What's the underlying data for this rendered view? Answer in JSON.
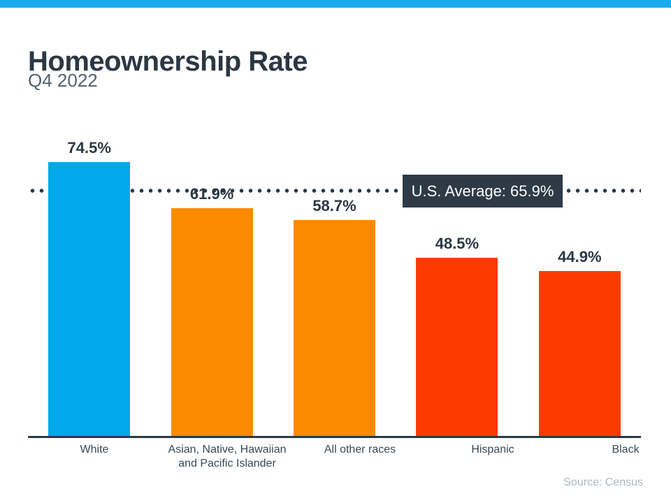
{
  "header": {
    "title": "Homeownership Rate",
    "subtitle": "Q4 2022"
  },
  "average_callout": {
    "label": "U.S. Average: 65.9%"
  },
  "footer": {
    "source": "Source: Census"
  },
  "colors": {
    "top_bar": "#18ABEC",
    "title_text": "#2B3744",
    "subtitle_text": "#54626D",
    "value_text": "#2B3744",
    "category_text": "#3A4854",
    "axis": "#2C3844",
    "dotted_line": "#2C3844",
    "callout_bg": "#2E3A46",
    "callout_text": "#FFFFFF",
    "source_text": "#B1B7BD"
  },
  "chart_data": {
    "type": "bar",
    "title": "Homeownership Rate",
    "subtitle": "Q4 2022",
    "categories": [
      "White",
      "Asian, Native, Hawaiian and Pacific Islander",
      "All other races",
      "Hispanic",
      "Black"
    ],
    "values": [
      74.5,
      61.9,
      58.7,
      48.5,
      44.9
    ],
    "value_labels": [
      "74.5%",
      "61.9%",
      "58.7%",
      "48.5%",
      "44.9%"
    ],
    "bar_colors": [
      "#00A9E9",
      "#FC8A00",
      "#FC8A00",
      "#FD3A02",
      "#FD3A02"
    ],
    "average_line": {
      "value": 65.9,
      "label": "U.S. Average: 65.9%",
      "style": "dotted"
    },
    "ylim": [
      0,
      100
    ],
    "grid": false,
    "legend": false,
    "source": "Source: Census"
  }
}
